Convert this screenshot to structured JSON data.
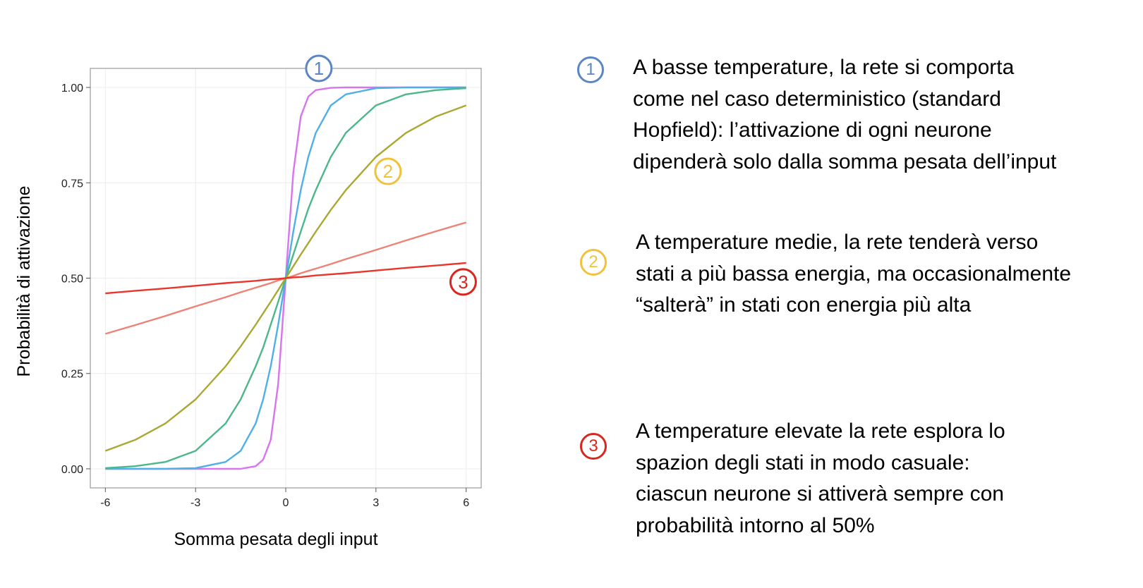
{
  "chart_data": {
    "type": "line",
    "xlabel": "Somma pesata degli input",
    "ylabel": "Probabilità di attivazione",
    "xlim": [
      -6.5,
      6.5
    ],
    "ylim": [
      -0.05,
      1.05
    ],
    "x_ticks": [
      -6,
      -3,
      0,
      3,
      6
    ],
    "x_tick_labels": [
      "-6",
      "-3",
      "0",
      "3",
      "6"
    ],
    "y_ticks": [
      0,
      0.25,
      0.5,
      0.75,
      1
    ],
    "y_tick_labels": [
      "0.00",
      "0.25",
      "0.50",
      "0.75",
      "1.00"
    ],
    "grid": true,
    "legend": "none",
    "x": [
      -6,
      -5,
      -4,
      -3,
      -2,
      -1.5,
      -1,
      -0.75,
      -0.5,
      -0.25,
      0,
      0.25,
      0.5,
      0.75,
      1,
      1.5,
      2,
      3,
      4,
      5,
      6
    ],
    "series": [
      {
        "color": "#d874f0",
        "values": [
          0.0,
          0.0,
          0.0,
          0.0,
          0.0,
          0.0,
          0.007,
          0.024,
          0.076,
          0.223,
          0.5,
          0.777,
          0.924,
          0.976,
          0.993,
          0.999,
          1.0,
          1.0,
          1.0,
          1.0,
          1.0
        ]
      },
      {
        "color": "#4fb0e8",
        "values": [
          0.0,
          0.0,
          0.0,
          0.002,
          0.018,
          0.047,
          0.119,
          0.182,
          0.269,
          0.378,
          0.5,
          0.622,
          0.731,
          0.818,
          0.881,
          0.953,
          0.982,
          0.998,
          1.0,
          1.0,
          1.0
        ]
      },
      {
        "color": "#4cb78a",
        "values": [
          0.002,
          0.007,
          0.018,
          0.047,
          0.119,
          0.182,
          0.269,
          0.318,
          0.378,
          0.438,
          0.5,
          0.562,
          0.622,
          0.682,
          0.731,
          0.818,
          0.881,
          0.953,
          0.982,
          0.993,
          0.998
        ]
      },
      {
        "color": "#a8a832",
        "values": [
          0.047,
          0.076,
          0.119,
          0.182,
          0.269,
          0.321,
          0.378,
          0.408,
          0.438,
          0.469,
          0.5,
          0.531,
          0.562,
          0.592,
          0.622,
          0.679,
          0.731,
          0.818,
          0.881,
          0.924,
          0.953
        ]
      },
      {
        "color": "#ee8275",
        "values": [
          0.354,
          0.377,
          0.401,
          0.426,
          0.45,
          0.463,
          0.475,
          0.481,
          0.487,
          0.494,
          0.5,
          0.506,
          0.513,
          0.519,
          0.525,
          0.537,
          0.55,
          0.574,
          0.599,
          0.623,
          0.646
        ]
      },
      {
        "color": "#e8362a",
        "values": [
          0.46,
          0.467,
          0.473,
          0.48,
          0.487,
          0.49,
          0.493,
          0.495,
          0.497,
          0.498,
          0.5,
          0.502,
          0.503,
          0.505,
          0.507,
          0.51,
          0.513,
          0.52,
          0.527,
          0.533,
          0.54
        ]
      }
    ],
    "annotations": [
      {
        "text": "1",
        "x": 1.1,
        "y": 1.05,
        "color": "#5b86c5"
      },
      {
        "text": "2",
        "x": 3.4,
        "y": 0.78,
        "color": "#f0c23c"
      },
      {
        "text": "3",
        "x": 5.9,
        "y": 0.49,
        "color": "#d9271f"
      }
    ]
  },
  "notes": [
    {
      "marker": "1",
      "color": "#5b86c5",
      "text": "A basse temperature, la rete si comporta\ncome nel caso deterministico (standard\nHopfield): l’attivazione di ogni neurone\ndipenderà solo dalla somma pesata dell’input"
    },
    {
      "marker": "2",
      "color": "#f0c23c",
      "text": "A temperature medie, la rete tenderà verso\nstati a più bassa energia, ma occasionalmente\n“salterà” in stati con energia più alta"
    },
    {
      "marker": "3",
      "color": "#d9271f",
      "text": "A temperature elevate la rete esplora lo\nspazion degli stati in modo casuale:\nciascun neurone si attiverà sempre con\nprobabilità intorno al 50%"
    }
  ]
}
